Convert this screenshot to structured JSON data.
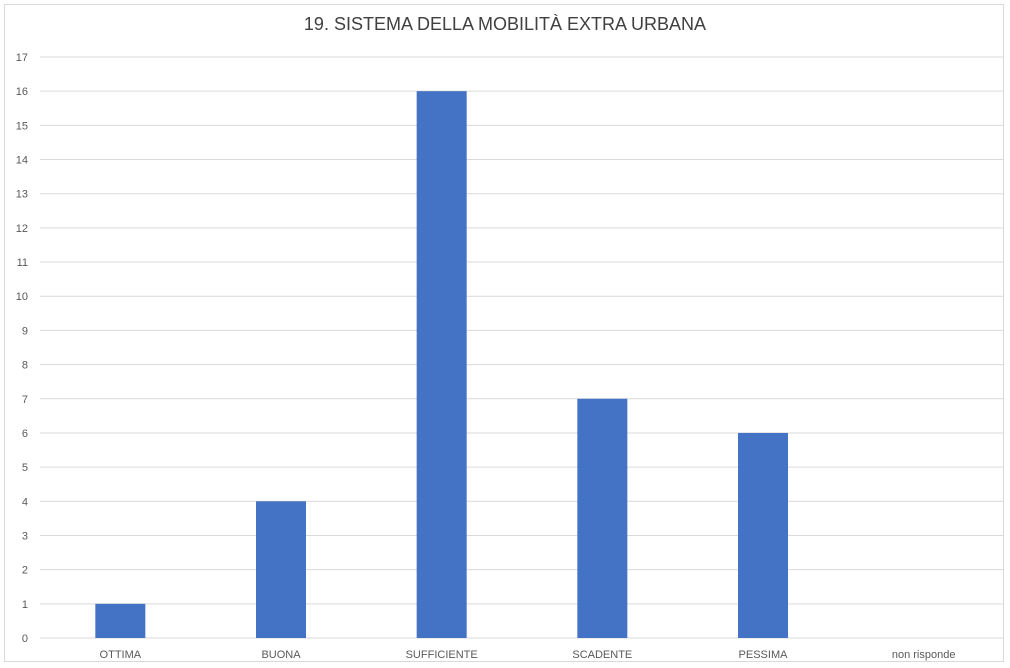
{
  "chart_data": {
    "type": "bar",
    "title": "19. SISTEMA DELLA MOBILITÀ EXTRA URBANA",
    "xlabel": "",
    "ylabel": "",
    "categories": [
      "OTTIMA",
      "BUONA",
      "SUFFICIENTE",
      "SCADENTE",
      "PESSIMA",
      "non risponde"
    ],
    "values": [
      1,
      4,
      16,
      7,
      6,
      0
    ],
    "ylim": [
      0,
      17
    ],
    "ytick_step": 1,
    "grid": true,
    "legend": "none",
    "colors": {
      "bar": "#4472c4",
      "grid": "#d9d9d9",
      "text": "#595959"
    }
  }
}
